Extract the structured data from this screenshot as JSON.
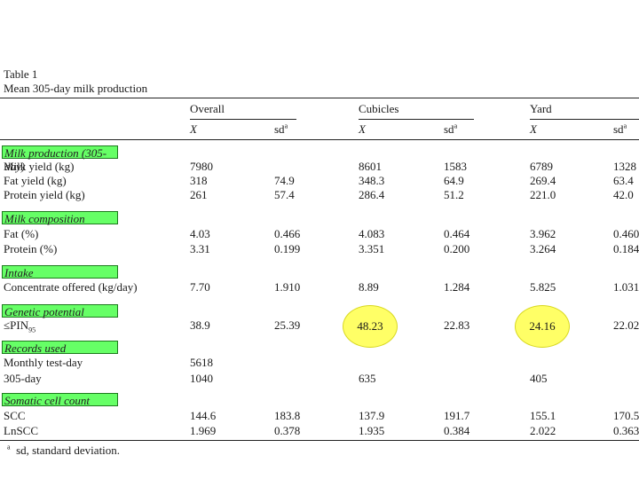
{
  "table": {
    "title": "Table 1",
    "caption": "Mean 305-day milk production",
    "groups": [
      "Overall",
      "Cubicles",
      "Yard"
    ],
    "col_x_label": "X",
    "col_sd_label": "sd",
    "col_sd_sup": "a",
    "sections": {
      "milk_production": "Milk production (305-day)",
      "milk_composition": "Milk composition",
      "intake": "Intake",
      "genetic_potential": "Genetic potential",
      "records_used": "Records used",
      "somatic_cell_count": "Somatic cell count"
    },
    "rows": {
      "milk_yield": {
        "label": "Milk yield (kg)",
        "v": [
          "7980",
          "",
          "8601",
          "1583",
          "6789",
          "1328"
        ]
      },
      "fat_yield": {
        "label": "Fat yield (kg)",
        "v": [
          "318",
          "74.9",
          "348.3",
          "64.9",
          "269.4",
          "63.4"
        ]
      },
      "protein_yield": {
        "label": "Protein yield (kg)",
        "v": [
          "261",
          "57.4",
          "286.4",
          "51.2",
          "221.0",
          "42.0"
        ]
      },
      "fat_pct": {
        "label": "Fat (%)",
        "v": [
          "4.03",
          "0.466",
          "4.083",
          "0.464",
          "3.962",
          "0.460"
        ]
      },
      "protein_pct": {
        "label": "Protein (%)",
        "v": [
          "3.31",
          "0.199",
          "3.351",
          "0.200",
          "3.264",
          "0.184"
        ]
      },
      "concentrate": {
        "label": "Concentrate offered (kg/day)",
        "v": [
          "7.70",
          "1.910",
          "8.89",
          "1.284",
          "5.825",
          "1.031"
        ]
      },
      "pin": {
        "label_main": "≤PIN",
        "label_sub": "95",
        "v": [
          "38.9",
          "25.39",
          "48.23",
          "22.83",
          "24.16",
          "22.02"
        ]
      },
      "monthly": {
        "label": "Monthly test-day",
        "v": [
          "5618",
          "",
          "",
          "",
          "",
          ""
        ]
      },
      "day305": {
        "label": "305-day",
        "v": [
          "1040",
          "",
          "635",
          "",
          "405",
          ""
        ]
      },
      "scc": {
        "label": "SCC",
        "v": [
          "144.6",
          "183.8",
          "137.9",
          "191.7",
          "155.1",
          "170.5"
        ]
      },
      "lnscc": {
        "label": "LnSCC",
        "v": [
          "1.969",
          "0.378",
          "1.935",
          "0.384",
          "2.022",
          "0.363"
        ]
      }
    },
    "footnote_mark": "a",
    "footnote_text": "sd, standard deviation.",
    "highlight_color": "#ffff66",
    "section_color": "#66ff66"
  }
}
